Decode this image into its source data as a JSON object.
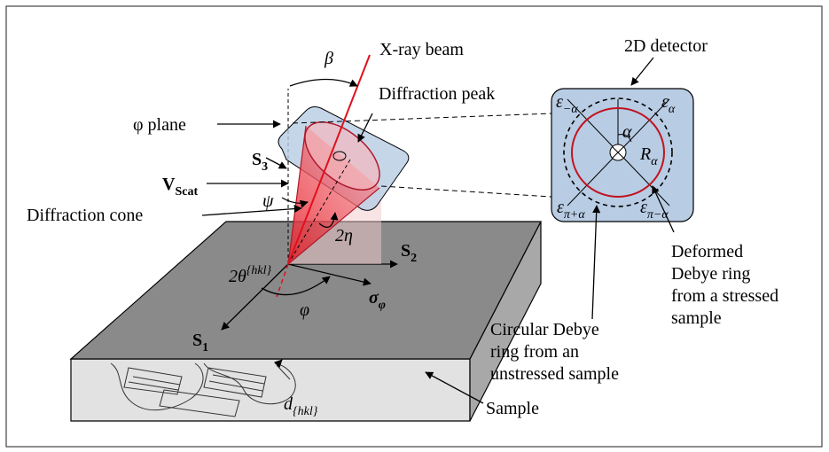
{
  "labels": [
    {
      "text": "X-ray beam"
    },
    {
      "text": "β"
    },
    {
      "text": "Diffraction peak"
    },
    {
      "text": "φ plane"
    },
    {
      "text": "S",
      "sub": "3"
    },
    {
      "text": "V",
      "sub": "Scat"
    },
    {
      "text": "ψ"
    },
    {
      "text": "Diffraction cone"
    },
    {
      "text": "2η"
    },
    {
      "text": "S",
      "sub": "2"
    },
    {
      "text": "2θ",
      "sup": "{hkl}"
    },
    {
      "text": "φ"
    },
    {
      "text": "σ",
      "sub": "φ"
    },
    {
      "text": "S",
      "sub": "1"
    },
    {
      "text": "d",
      "sub": "{hkl}"
    },
    {
      "text": "Sample"
    },
    {
      "text": "2D detector"
    },
    {
      "text": "ε",
      "sub": "−α"
    },
    {
      "text": "ε",
      "sub": "α"
    },
    {
      "text": "α"
    },
    {
      "text": "R",
      "sub": "α"
    },
    {
      "text": "ε",
      "sub": "π+α"
    },
    {
      "text": "ε",
      "sub": "π−α"
    },
    {
      "lines": [
        "Deformed",
        "Debye ring",
        "from a stressed",
        "sample"
      ]
    },
    {
      "lines": [
        "Circular Debye",
        "ring from an",
        "unstressed sample"
      ]
    }
  ]
}
